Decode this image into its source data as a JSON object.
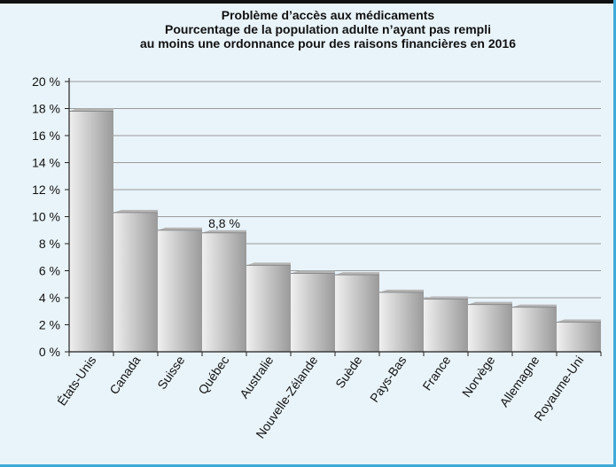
{
  "chart_data": {
    "type": "bar",
    "title": [
      "Problème d’accès aux médicaments",
      "Pourcentage de la population adulte n’ayant pas rempli",
      "au moins une ordonnance pour des raisons financières en 2016"
    ],
    "categories": [
      "États-Unis",
      "Canada",
      "Suisse",
      "Québec",
      "Australie",
      "Nouvelle-Zélande",
      "Suède",
      "Pays-Bas",
      "France",
      "Norvège",
      "Allemagne",
      "Royaume-Uni"
    ],
    "values": [
      17.8,
      10.3,
      9.0,
      8.8,
      6.4,
      5.8,
      5.7,
      4.4,
      3.9,
      3.5,
      3.3,
      2.2
    ],
    "data_labels": [
      {
        "index": 3,
        "text": "8,8 %"
      }
    ],
    "y_ticks": [
      "0 %",
      "2 %",
      "4 %",
      "6 %",
      "8 %",
      "10 %",
      "12 %",
      "14 %",
      "16 %",
      "18 %",
      "20 %"
    ],
    "ylim": [
      0,
      20
    ],
    "xlabel": "",
    "ylabel": "",
    "grid": true,
    "legend": "none",
    "colors": {
      "bar_light": "#f0f0f0",
      "bar_dark": "#9a9a9a",
      "background": "#e9f4fa",
      "accent": "#3fa9d8"
    }
  }
}
